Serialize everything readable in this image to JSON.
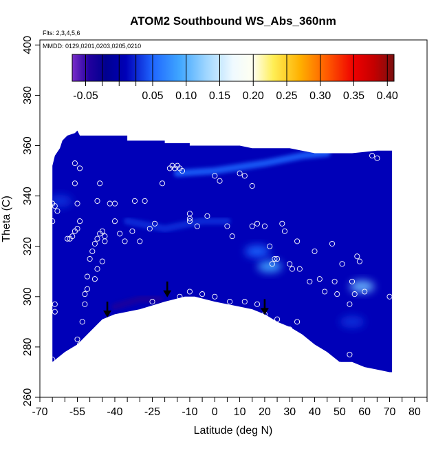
{
  "chart_data": {
    "type": "heatmap",
    "title": "ATOM2 Southbound WS_Abs_360nm",
    "annotations": [
      "Flts: 2,3,4,5,6",
      "MMDD: 0129,0201,0203,0205,0210"
    ],
    "xlabel": "Latitude (deg N)",
    "ylabel": "Theta (C)",
    "xlim": [
      -70,
      85
    ],
    "ylim": [
      260,
      402
    ],
    "x_ticks": [
      -70,
      -55,
      -40,
      -25,
      -10,
      0,
      10,
      20,
      30,
      40,
      50,
      60,
      70,
      80
    ],
    "x_minor_ticks": [
      -65,
      -60,
      -50,
      -45,
      -35,
      -30,
      -20,
      -15,
      -5,
      5,
      15,
      25,
      35,
      45,
      55,
      65,
      75,
      85
    ],
    "y_ticks": [
      260,
      280,
      300,
      320,
      340,
      360,
      380,
      400
    ],
    "colorbar": {
      "range": [
        -0.07,
        0.41
      ],
      "ticks": [
        -0.05,
        0.05,
        0.1,
        0.15,
        0.2,
        0.25,
        0.3,
        0.35,
        0.4
      ],
      "tick_labels": [
        "-0.05",
        "0.05",
        "0.10",
        "0.15",
        "0.20",
        "0.25",
        "0.30",
        "0.35",
        "0.40"
      ],
      "unlabeled_ticks": [
        -0.025,
        0.0,
        0.025
      ],
      "stops": [
        {
          "v": -0.07,
          "color": "#7a2ec9"
        },
        {
          "v": -0.045,
          "color": "#22009e"
        },
        {
          "v": -0.02,
          "color": "#000090"
        },
        {
          "v": 0.01,
          "color": "#0000b8"
        },
        {
          "v": 0.05,
          "color": "#1f66ff"
        },
        {
          "v": 0.09,
          "color": "#3fa6ff"
        },
        {
          "v": 0.13,
          "color": "#9fd6ff"
        },
        {
          "v": 0.17,
          "color": "#f0faff"
        },
        {
          "v": 0.2,
          "color": "#fffff0"
        },
        {
          "v": 0.23,
          "color": "#ffee55"
        },
        {
          "v": 0.27,
          "color": "#ffb000"
        },
        {
          "v": 0.31,
          "color": "#ff5a00"
        },
        {
          "v": 0.35,
          "color": "#ee0000"
        },
        {
          "v": 0.38,
          "color": "#c40000"
        },
        {
          "v": 0.41,
          "color": "#7a1010"
        }
      ]
    },
    "field_value_typical": 0.01,
    "field_bounds": {
      "top": [
        [
          -65,
          352
        ],
        [
          -64,
          356
        ],
        [
          -62,
          359
        ],
        [
          -61,
          362
        ],
        [
          -60,
          363
        ],
        [
          -59,
          364
        ],
        [
          -56,
          365
        ],
        [
          -55,
          366
        ],
        [
          -54,
          364
        ],
        [
          -35,
          364
        ],
        [
          -35,
          362
        ],
        [
          -20,
          362
        ],
        [
          -20,
          361
        ],
        [
          -10,
          361
        ],
        [
          -10,
          360
        ],
        [
          10,
          360
        ],
        [
          15,
          359
        ],
        [
          30,
          359
        ],
        [
          40,
          357
        ],
        [
          55,
          357
        ],
        [
          65,
          358
        ],
        [
          71,
          358
        ]
      ],
      "bottom": [
        [
          -65,
          274
        ],
        [
          -60,
          278
        ],
        [
          -55,
          281
        ],
        [
          -50,
          286
        ],
        [
          -45,
          291
        ],
        [
          -40,
          293
        ],
        [
          -30,
          295
        ],
        [
          -20,
          298
        ],
        [
          -12,
          300
        ],
        [
          -8,
          300
        ],
        [
          0,
          298
        ],
        [
          5,
          297
        ],
        [
          10,
          296
        ],
        [
          15,
          295
        ],
        [
          20,
          293
        ],
        [
          25,
          290
        ],
        [
          30,
          288
        ],
        [
          35,
          285
        ],
        [
          40,
          281
        ],
        [
          45,
          278
        ],
        [
          50,
          274
        ],
        [
          55,
          274
        ],
        [
          60,
          272
        ],
        [
          65,
          271
        ],
        [
          70,
          270
        ],
        [
          71,
          270
        ]
      ],
      "left_x": -65,
      "right_x": 71
    },
    "features": [
      {
        "type": "band",
        "points": [
          [
            -15,
            349
          ],
          [
            0,
            350
          ],
          [
            20,
            353
          ],
          [
            35,
            356
          ],
          [
            45,
            357
          ]
        ],
        "value": 0.05
      },
      {
        "type": "band",
        "points": [
          [
            -35,
            330
          ],
          [
            -20,
            327
          ],
          [
            -5,
            330
          ],
          [
            5,
            330
          ]
        ],
        "value": 0.03
      },
      {
        "type": "blob",
        "x": 22,
        "y": 312,
        "value": 0.09
      },
      {
        "type": "blob",
        "x": 59,
        "y": 304,
        "value": 0.11
      },
      {
        "type": "blob",
        "x": 17,
        "y": 318,
        "value": 0.05
      },
      {
        "type": "blob",
        "x": 55,
        "y": 290,
        "value": 0.03
      },
      {
        "type": "band",
        "points": [
          [
            -40,
            296
          ],
          [
            -30,
            299
          ],
          [
            -22,
            299
          ]
        ],
        "value": -0.04
      },
      {
        "type": "blob",
        "x": -62,
        "y": 338,
        "value": 0.03
      }
    ],
    "points": [
      [
        -65,
        337
      ],
      [
        -64,
        336
      ],
      [
        -63,
        334
      ],
      [
        -65,
        330
      ],
      [
        -64,
        297
      ],
      [
        -64,
        294
      ],
      [
        -65,
        275
      ],
      [
        -59,
        323
      ],
      [
        -58,
        323
      ],
      [
        -57,
        324
      ],
      [
        -56,
        326
      ],
      [
        -55,
        327
      ],
      [
        -54,
        330
      ],
      [
        -55,
        337
      ],
      [
        -56,
        345
      ],
      [
        -56,
        353
      ],
      [
        -54,
        351
      ],
      [
        -55,
        283
      ],
      [
        -54,
        281
      ],
      [
        -53,
        290
      ],
      [
        -52,
        297
      ],
      [
        -52,
        301
      ],
      [
        -51,
        303
      ],
      [
        -51,
        308
      ],
      [
        -50,
        315
      ],
      [
        -49,
        318
      ],
      [
        -48,
        321
      ],
      [
        -47,
        323
      ],
      [
        -46,
        325
      ],
      [
        -45,
        326
      ],
      [
        -44,
        324
      ],
      [
        -44,
        322
      ],
      [
        -45,
        314
      ],
      [
        -47,
        311
      ],
      [
        -48,
        307
      ],
      [
        -46,
        345
      ],
      [
        -47,
        338
      ],
      [
        -42,
        337
      ],
      [
        -40,
        337
      ],
      [
        -40,
        330
      ],
      [
        -38,
        325
      ],
      [
        -36,
        322
      ],
      [
        -33,
        326
      ],
      [
        -32,
        338
      ],
      [
        -30,
        322
      ],
      [
        -28,
        338
      ],
      [
        -26,
        327
      ],
      [
        -24,
        329
      ],
      [
        -21,
        345
      ],
      [
        -18,
        351
      ],
      [
        -17,
        352
      ],
      [
        -16,
        351
      ],
      [
        -15,
        352
      ],
      [
        -14,
        351
      ],
      [
        -13,
        350
      ],
      [
        -38,
        292
      ],
      [
        -42,
        291
      ],
      [
        -34,
        293
      ],
      [
        -25,
        298
      ],
      [
        -14,
        300
      ],
      [
        -10,
        302
      ],
      [
        -5,
        301
      ],
      [
        0,
        300
      ],
      [
        6,
        298
      ],
      [
        12,
        298
      ],
      [
        17,
        297
      ],
      [
        20,
        293
      ],
      [
        25,
        291
      ],
      [
        30,
        287
      ],
      [
        33,
        290
      ],
      [
        -10,
        333
      ],
      [
        -10,
        330
      ],
      [
        -10,
        331
      ],
      [
        -7,
        328
      ],
      [
        -3,
        332
      ],
      [
        0,
        348
      ],
      [
        2,
        346
      ],
      [
        5,
        328
      ],
      [
        7,
        324
      ],
      [
        10,
        349
      ],
      [
        12,
        348
      ],
      [
        15,
        344
      ],
      [
        15,
        328
      ],
      [
        17,
        329
      ],
      [
        20,
        328
      ],
      [
        22,
        320
      ],
      [
        23,
        313
      ],
      [
        24,
        315
      ],
      [
        25,
        315
      ],
      [
        27,
        329
      ],
      [
        28,
        326
      ],
      [
        30,
        313
      ],
      [
        31,
        311
      ],
      [
        33,
        322
      ],
      [
        34,
        311
      ],
      [
        38,
        306
      ],
      [
        40,
        318
      ],
      [
        42,
        307
      ],
      [
        44,
        302
      ],
      [
        47,
        321
      ],
      [
        48,
        306
      ],
      [
        49,
        301
      ],
      [
        51,
        313
      ],
      [
        54,
        297
      ],
      [
        55,
        306
      ],
      [
        56,
        301
      ],
      [
        57,
        316
      ],
      [
        58,
        314
      ],
      [
        60,
        302
      ],
      [
        63,
        356
      ],
      [
        65,
        355
      ],
      [
        70,
        300
      ],
      [
        54,
        277
      ],
      [
        50,
        273
      ]
    ],
    "arrows": [
      [
        -43,
        292
      ],
      [
        -19,
        300
      ],
      [
        20,
        293
      ]
    ]
  }
}
